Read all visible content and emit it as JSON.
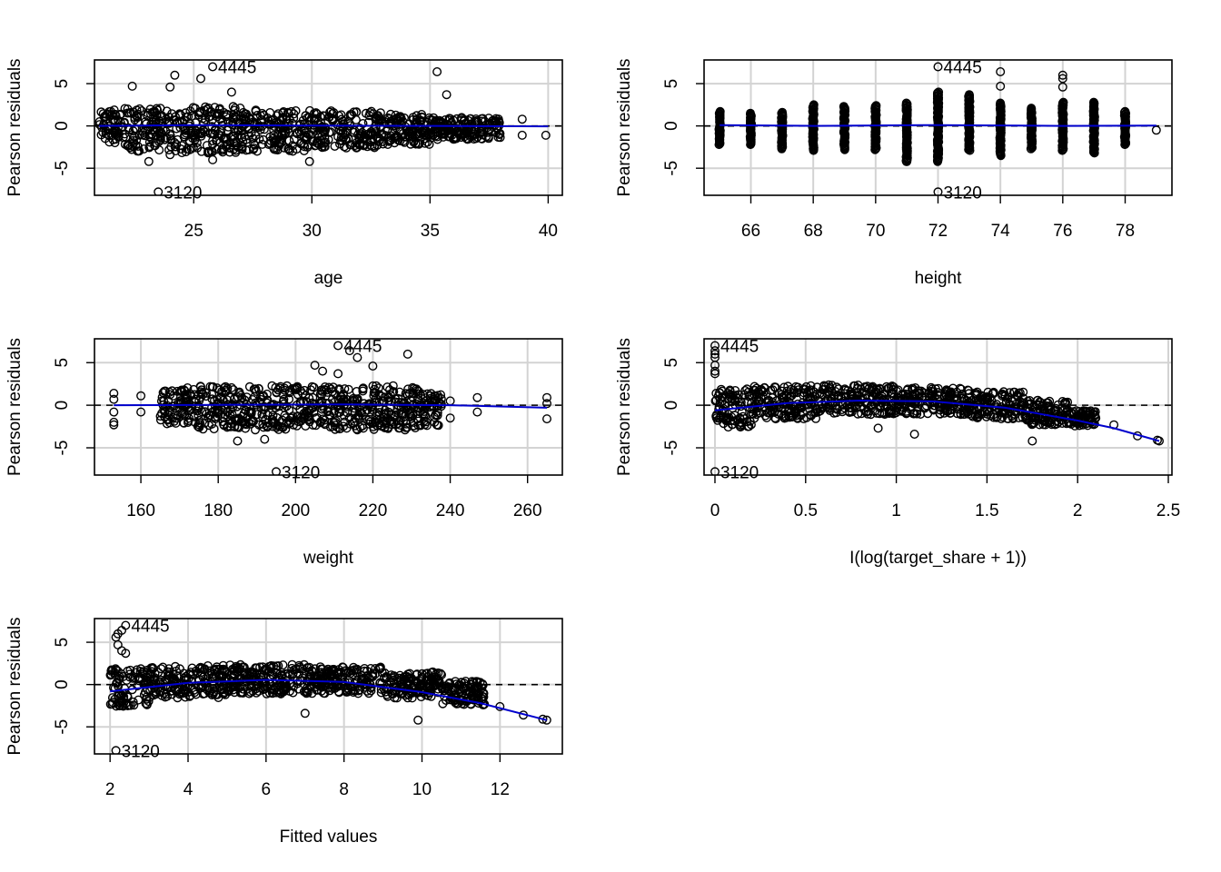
{
  "colors": {
    "points": "#000000",
    "smooth": "#0000cd",
    "grid": "#d3d3d3",
    "reference": "#000000"
  },
  "chart_data": [
    {
      "type": "scatter",
      "xlabel": "age",
      "ylabel": "Pearson residuals",
      "xlim": [
        20.8,
        40.6
      ],
      "ylim": [
        -8.2,
        7.8
      ],
      "xticks": [
        25,
        30,
        35,
        40
      ],
      "yticks": [
        -5,
        0,
        5
      ],
      "grid": true,
      "reference_line": 0,
      "cloud": [
        {
          "x": [
            21,
            22
          ],
          "y": [
            -2.0,
            1.9
          ]
        },
        {
          "x": [
            22,
            24
          ],
          "y": [
            -3.0,
            2.1
          ]
        },
        {
          "x": [
            24,
            27
          ],
          "y": [
            -3.2,
            2.3
          ]
        },
        {
          "x": [
            27,
            30
          ],
          "y": [
            -3.0,
            2.0
          ]
        },
        {
          "x": [
            30,
            33
          ],
          "y": [
            -2.6,
            1.8
          ]
        },
        {
          "x": [
            33,
            35
          ],
          "y": [
            -2.2,
            1.4
          ]
        },
        {
          "x": [
            35,
            38
          ],
          "y": [
            -1.6,
            1.0
          ]
        }
      ],
      "points": [
        {
          "x": 23.5,
          "y": -7.8,
          "label": "3120"
        },
        {
          "x": 25.8,
          "y": 7.0,
          "label": "4445"
        },
        {
          "x": 24.2,
          "y": 6.0
        },
        {
          "x": 25.3,
          "y": 5.6
        },
        {
          "x": 22.4,
          "y": 4.7
        },
        {
          "x": 24.0,
          "y": 4.6
        },
        {
          "x": 26.6,
          "y": 4.0
        },
        {
          "x": 35.3,
          "y": 6.4
        },
        {
          "x": 35.7,
          "y": 3.7
        },
        {
          "x": 38.9,
          "y": 0.8
        },
        {
          "x": 38.9,
          "y": -1.1
        },
        {
          "x": 39.9,
          "y": -1.1
        },
        {
          "x": 37.8,
          "y": -0.2
        },
        {
          "x": 37.0,
          "y": 0.4
        },
        {
          "x": 23.1,
          "y": -4.2
        },
        {
          "x": 25.8,
          "y": -4.0
        },
        {
          "x": 29.9,
          "y": -4.2
        },
        {
          "x": 24.0,
          "y": -3.4
        }
      ],
      "smooth": {
        "x": [
          21,
          25,
          30,
          35,
          40
        ],
        "y": [
          0.0,
          0.1,
          0.05,
          0.0,
          -0.05
        ]
      }
    },
    {
      "type": "scatter",
      "xlabel": "height",
      "ylabel": "Pearson residuals",
      "xlim": [
        64.5,
        79.5
      ],
      "ylim": [
        -8.2,
        7.8
      ],
      "xticks": [
        66,
        68,
        70,
        72,
        74,
        76,
        78
      ],
      "yticks": [
        -5,
        0,
        5
      ],
      "grid": true,
      "reference_line": 0,
      "strips": [
        {
          "x": 65,
          "ymin": -2.2,
          "ymax": 1.7
        },
        {
          "x": 66,
          "ymin": -2.2,
          "ymax": 1.5
        },
        {
          "x": 67,
          "ymin": -2.7,
          "ymax": 1.6
        },
        {
          "x": 68,
          "ymin": -2.9,
          "ymax": 2.5
        },
        {
          "x": 69,
          "ymin": -2.8,
          "ymax": 2.3
        },
        {
          "x": 70,
          "ymin": -2.8,
          "ymax": 2.4
        },
        {
          "x": 71,
          "ymin": -4.2,
          "ymax": 2.7
        },
        {
          "x": 72,
          "ymin": -4.2,
          "ymax": 4.0
        },
        {
          "x": 73,
          "ymin": -2.9,
          "ymax": 3.7
        },
        {
          "x": 74,
          "ymin": -3.5,
          "ymax": 2.7
        },
        {
          "x": 75,
          "ymin": -2.7,
          "ymax": 2.1
        },
        {
          "x": 76,
          "ymin": -2.9,
          "ymax": 2.8
        },
        {
          "x": 77,
          "ymin": -3.2,
          "ymax": 2.8
        },
        {
          "x": 78,
          "ymin": -2.2,
          "ymax": 1.7
        }
      ],
      "points": [
        {
          "x": 72,
          "y": -7.8,
          "label": "3120"
        },
        {
          "x": 72,
          "y": 7.0,
          "label": "4445"
        },
        {
          "x": 74,
          "y": 6.4
        },
        {
          "x": 74,
          "y": 4.7
        },
        {
          "x": 76,
          "y": 6.0
        },
        {
          "x": 76,
          "y": 5.6
        },
        {
          "x": 76,
          "y": 4.6
        },
        {
          "x": 79,
          "y": -0.5
        },
        {
          "x": 71,
          "y": -4.2
        },
        {
          "x": 72,
          "y": -4.0
        }
      ],
      "smooth": {
        "x": [
          65,
          68,
          72,
          76,
          79
        ],
        "y": [
          0.1,
          0.0,
          0.1,
          0.0,
          0.05
        ]
      }
    },
    {
      "type": "scatter",
      "xlabel": "weight",
      "ylabel": "Pearson residuals",
      "xlim": [
        148,
        269
      ],
      "ylim": [
        -8.2,
        7.8
      ],
      "xticks": [
        160,
        180,
        200,
        220,
        240,
        260
      ],
      "yticks": [
        -5,
        0,
        5
      ],
      "grid": true,
      "reference_line": 0,
      "cloud": [
        {
          "x": [
            165,
            172
          ],
          "y": [
            -2.2,
            1.8
          ]
        },
        {
          "x": [
            172,
            232
          ],
          "y": [
            -2.9,
            2.3
          ]
        },
        {
          "x": [
            232,
            238
          ],
          "y": [
            -2.4,
            1.4
          ]
        }
      ],
      "points": [
        {
          "x": 195,
          "y": -7.8,
          "label": "3120"
        },
        {
          "x": 211,
          "y": 7.0,
          "label": "4445"
        },
        {
          "x": 214,
          "y": 6.4
        },
        {
          "x": 216,
          "y": 5.6
        },
        {
          "x": 229,
          "y": 6.0
        },
        {
          "x": 205,
          "y": 4.7
        },
        {
          "x": 220,
          "y": 4.6
        },
        {
          "x": 211,
          "y": 3.7
        },
        {
          "x": 207,
          "y": 4.0
        },
        {
          "x": 153,
          "y": 1.4
        },
        {
          "x": 153,
          "y": 0.7
        },
        {
          "x": 153,
          "y": -0.8
        },
        {
          "x": 153,
          "y": -2.0
        },
        {
          "x": 153,
          "y": -2.3
        },
        {
          "x": 160,
          "y": 1.1
        },
        {
          "x": 160,
          "y": -0.8
        },
        {
          "x": 247,
          "y": 0.9
        },
        {
          "x": 247,
          "y": -0.8
        },
        {
          "x": 265,
          "y": 0.9
        },
        {
          "x": 265,
          "y": 0.2
        },
        {
          "x": 265,
          "y": -1.6
        },
        {
          "x": 240,
          "y": 0.5
        },
        {
          "x": 240,
          "y": -1.5
        },
        {
          "x": 185,
          "y": -4.2
        },
        {
          "x": 192,
          "y": -4.0
        }
      ],
      "smooth": {
        "x": [
          153,
          180,
          210,
          240,
          265
        ],
        "y": [
          0.0,
          0.05,
          0.1,
          0.0,
          -0.3
        ]
      }
    },
    {
      "type": "scatter",
      "xlabel": "I(log(target_share + 1))",
      "ylabel": "Pearson residuals",
      "xlim": [
        -0.06,
        2.52
      ],
      "ylim": [
        -8.2,
        7.8
      ],
      "xticks": [
        0.0,
        0.5,
        1.0,
        1.5,
        2.0,
        2.5
      ],
      "yticks": [
        -5,
        0,
        5
      ],
      "grid": true,
      "reference_line": 0,
      "cloud": [
        {
          "x": [
            0.0,
            0.2
          ],
          "y": [
            -2.6,
            1.9
          ]
        },
        {
          "x": [
            0.2,
            0.6
          ],
          "y": [
            -1.6,
            2.3
          ]
        },
        {
          "x": [
            0.6,
            1.0
          ],
          "y": [
            -1.1,
            2.4
          ]
        },
        {
          "x": [
            1.0,
            1.4
          ],
          "y": [
            -1.1,
            2.1
          ]
        },
        {
          "x": [
            1.4,
            1.7
          ],
          "y": [
            -1.6,
            1.6
          ]
        },
        {
          "x": [
            1.7,
            1.95
          ],
          "y": [
            -2.3,
            0.6
          ]
        },
        {
          "x": [
            1.95,
            2.1
          ],
          "y": [
            -2.6,
            -0.6
          ]
        }
      ],
      "points": [
        {
          "x": 0.0,
          "y": -7.8,
          "label": "3120"
        },
        {
          "x": 0.0,
          "y": 7.0,
          "label": "4445"
        },
        {
          "x": 0.0,
          "y": 6.4
        },
        {
          "x": 0.0,
          "y": 6.0
        },
        {
          "x": 0.0,
          "y": 5.6
        },
        {
          "x": 0.0,
          "y": 4.7
        },
        {
          "x": 0.0,
          "y": 4.0
        },
        {
          "x": 0.0,
          "y": 3.7
        },
        {
          "x": 2.1,
          "y": -1.5
        },
        {
          "x": 2.2,
          "y": -2.3
        },
        {
          "x": 2.33,
          "y": -3.6
        },
        {
          "x": 2.44,
          "y": -4.1
        },
        {
          "x": 2.45,
          "y": -4.2
        },
        {
          "x": 1.75,
          "y": -4.2
        },
        {
          "x": 1.1,
          "y": -3.4
        },
        {
          "x": 0.9,
          "y": -2.7
        }
      ],
      "smooth": {
        "x": [
          0.0,
          0.4,
          0.8,
          1.2,
          1.6,
          2.0,
          2.2,
          2.45
        ],
        "y": [
          -0.6,
          0.25,
          0.55,
          0.45,
          -0.3,
          -1.8,
          -2.7,
          -4.2
        ]
      }
    },
    {
      "type": "scatter",
      "xlabel": "Fitted values",
      "ylabel": "Pearson residuals",
      "xlim": [
        1.6,
        13.6
      ],
      "ylim": [
        -8.2,
        7.8
      ],
      "xticks": [
        2,
        4,
        6,
        8,
        10,
        12
      ],
      "yticks": [
        -5,
        0,
        5
      ],
      "grid": true,
      "reference_line": 0,
      "cloud": [
        {
          "x": [
            2.0,
            3.0
          ],
          "y": [
            -2.6,
            1.9
          ]
        },
        {
          "x": [
            3.0,
            5.0
          ],
          "y": [
            -1.6,
            2.3
          ]
        },
        {
          "x": [
            5.0,
            7.0
          ],
          "y": [
            -1.1,
            2.4
          ]
        },
        {
          "x": [
            7.0,
            9.0
          ],
          "y": [
            -1.1,
            2.1
          ]
        },
        {
          "x": [
            9.0,
            10.5
          ],
          "y": [
            -1.6,
            1.5
          ]
        },
        {
          "x": [
            10.5,
            11.6
          ],
          "y": [
            -2.4,
            0.4
          ]
        }
      ],
      "points": [
        {
          "x": 2.15,
          "y": -7.8,
          "label": "3120"
        },
        {
          "x": 2.4,
          "y": 7.0,
          "label": "4445"
        },
        {
          "x": 2.3,
          "y": 6.4
        },
        {
          "x": 2.2,
          "y": 6.0
        },
        {
          "x": 2.15,
          "y": 5.6
        },
        {
          "x": 2.2,
          "y": 4.7
        },
        {
          "x": 2.3,
          "y": 4.0
        },
        {
          "x": 2.4,
          "y": 3.7
        },
        {
          "x": 11.6,
          "y": -2.3
        },
        {
          "x": 12.0,
          "y": -2.6
        },
        {
          "x": 12.6,
          "y": -3.6
        },
        {
          "x": 13.1,
          "y": -4.1
        },
        {
          "x": 13.2,
          "y": -4.2
        },
        {
          "x": 9.9,
          "y": -4.2
        },
        {
          "x": 7.0,
          "y": -3.4
        }
      ],
      "smooth": {
        "x": [
          2.0,
          4.0,
          6.0,
          8.0,
          10.0,
          11.5,
          13.2
        ],
        "y": [
          -0.8,
          0.2,
          0.55,
          0.3,
          -0.9,
          -2.2,
          -4.2
        ]
      }
    }
  ]
}
